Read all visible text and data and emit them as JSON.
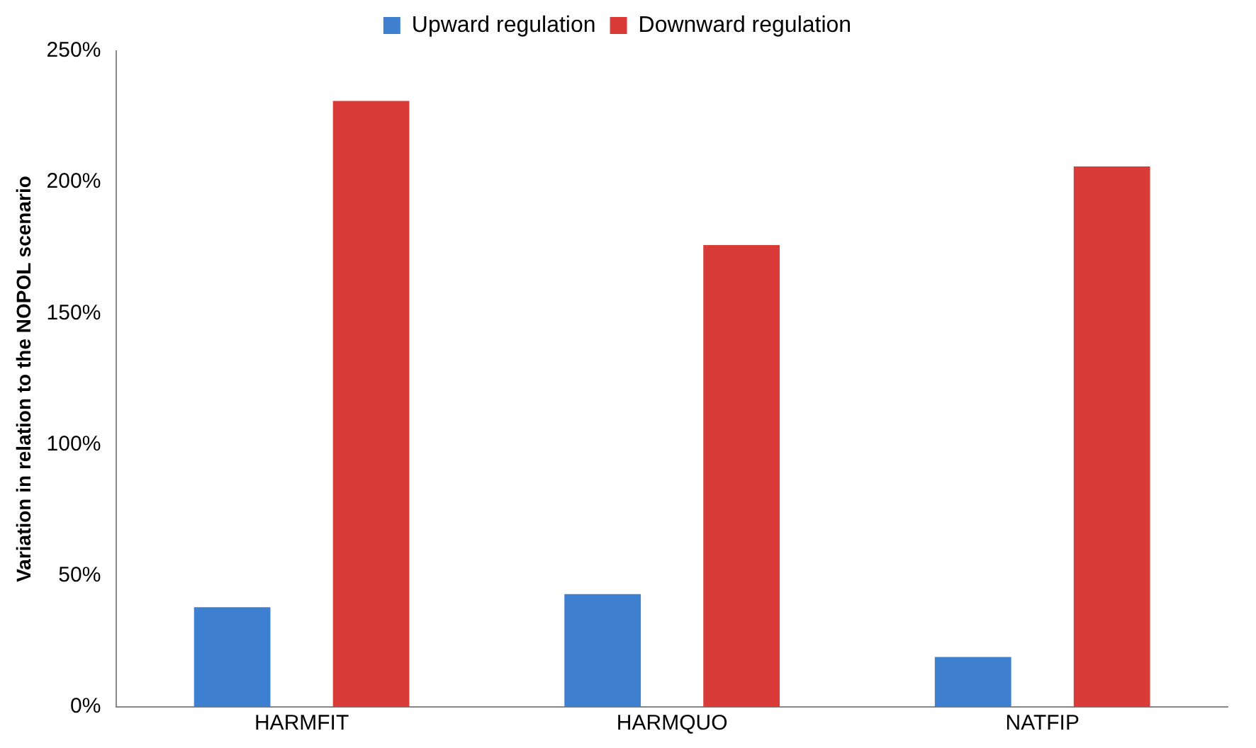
{
  "chart_data": {
    "type": "bar",
    "ylabel": "Variation in relation to the NOPOL scenario",
    "categories": [
      "HARMFIT",
      "HARMQUO",
      "NATFIP"
    ],
    "series": [
      {
        "name": "Upward regulation",
        "color": "#3f7fd0",
        "values": [
          38,
          43,
          19
        ]
      },
      {
        "name": "Downward regulation",
        "color": "#d93c38",
        "values": [
          231,
          176,
          206
        ]
      }
    ],
    "ylim": [
      0,
      250
    ],
    "yticks": [
      {
        "value": 0,
        "label": "0%"
      },
      {
        "value": 50,
        "label": "50%"
      },
      {
        "value": 100,
        "label": "100%"
      },
      {
        "value": 150,
        "label": "150%"
      },
      {
        "value": 200,
        "label": "200%"
      },
      {
        "value": 250,
        "label": "250%"
      }
    ],
    "grid": false,
    "legend": "top"
  }
}
